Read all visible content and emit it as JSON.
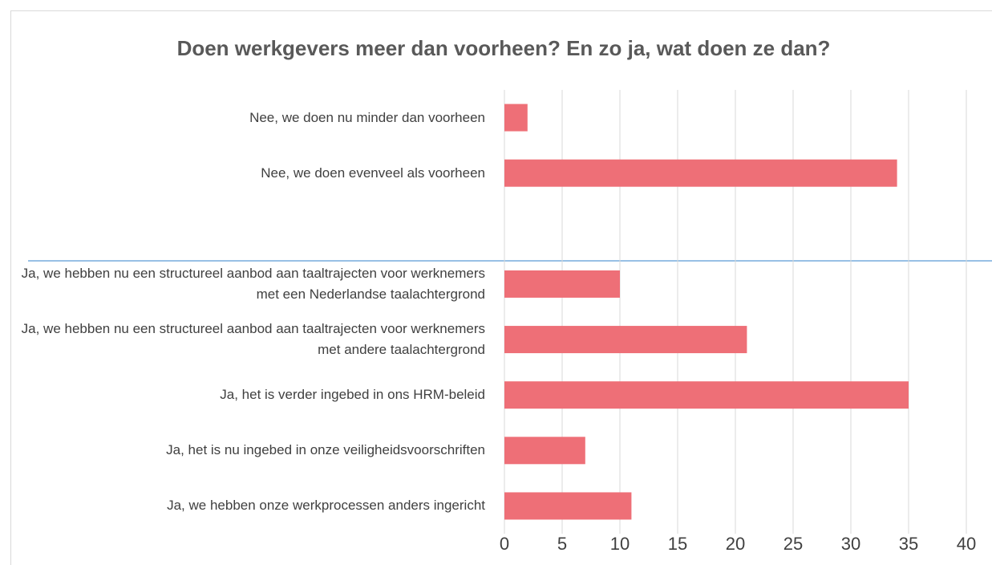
{
  "chart_data": {
    "type": "bar",
    "orientation": "horizontal",
    "title": "Doen werkgevers meer dan voorheen? En zo ja, wat doen ze dan?",
    "categories": [
      "Nee, we doen nu minder dan voorheen",
      "Nee, we doen evenveel als voorheen",
      null,
      "Ja, we hebben nu een structureel aanbod aan taaltrajecten voor werknemers met een Nederlandse taalachtergrond",
      "Ja, we hebben nu een structureel aanbod aan taaltrajecten voor werknemers met andere taalachtergrond",
      "Ja, het is verder ingebed in ons HRM-beleid",
      "Ja, het is nu ingebed in onze veiligheidsvoorschriften",
      "Ja, we hebben onze werkprocessen anders ingericht"
    ],
    "values": [
      2,
      34,
      null,
      10,
      21,
      35,
      7,
      11
    ],
    "color": "#ee6f77",
    "xlim": [
      0,
      40
    ],
    "xticks": [
      0,
      5,
      10,
      15,
      20,
      25,
      30,
      35,
      40
    ],
    "grid": true
  }
}
